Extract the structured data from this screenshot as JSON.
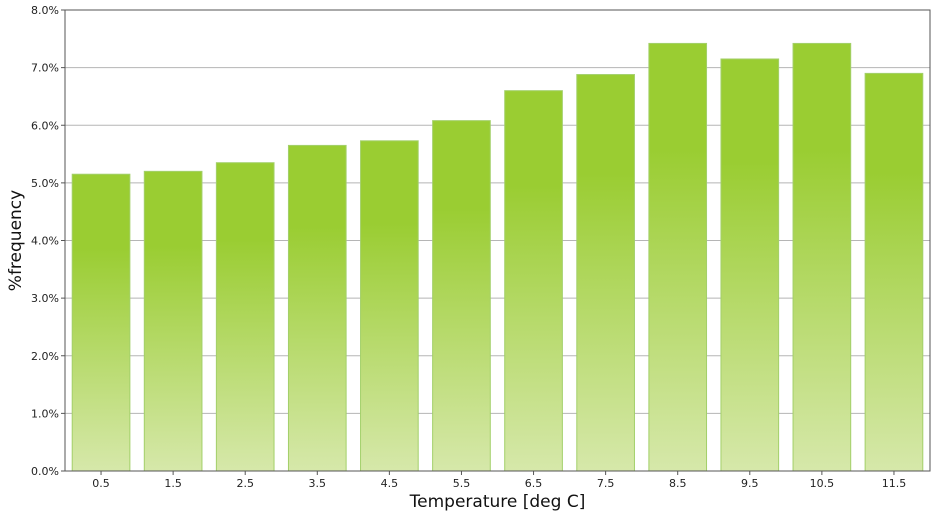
{
  "chart_data": {
    "type": "bar",
    "xlabel": "Temperature [deg C]",
    "ylabel": "%frequency",
    "categories": [
      "0.5",
      "1.5",
      "2.5",
      "3.5",
      "4.5",
      "5.5",
      "6.5",
      "7.5",
      "8.5",
      "9.5",
      "10.5",
      "11.5"
    ],
    "values": [
      5.15,
      5.2,
      5.35,
      5.65,
      5.73,
      6.08,
      6.6,
      6.88,
      7.42,
      7.15,
      7.42,
      6.9
    ],
    "value_unit": "%",
    "ylim": [
      0,
      8
    ],
    "yticks": [
      "0.0%",
      "1.0%",
      "2.0%",
      "3.0%",
      "4.0%",
      "5.0%",
      "6.0%",
      "7.0%",
      "8.0%"
    ],
    "grid": "horizontal",
    "legend": "none",
    "colors": {
      "bar_top": "#9acd32",
      "bar_bottom": "#d6e8aa",
      "bar_edge": "#a3d06a",
      "grid": "#b5b5b5",
      "frame": "#555555"
    }
  }
}
